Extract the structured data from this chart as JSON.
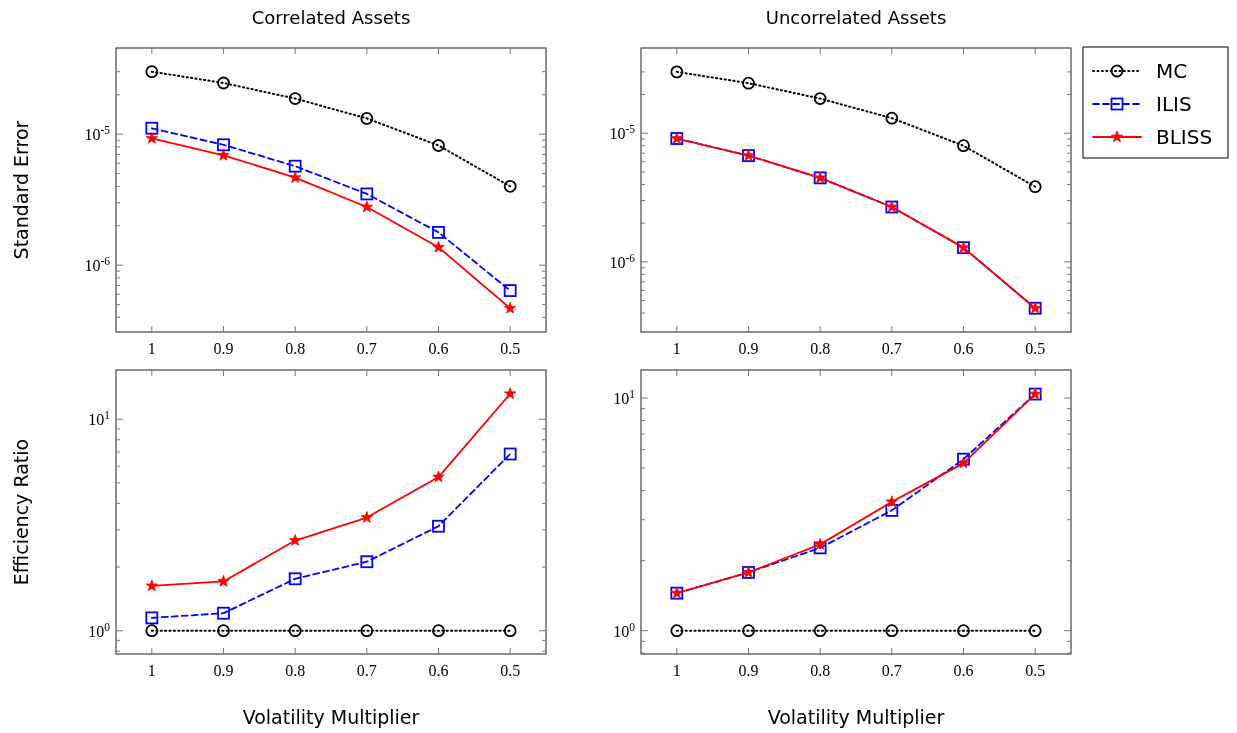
{
  "chart_data": [
    {
      "type": "line",
      "title": "Correlated Assets",
      "ylabel": "Standard Error",
      "x": [
        1,
        0.9,
        0.8,
        0.7,
        0.6,
        0.5
      ],
      "xlim": [
        1.05,
        0.45
      ],
      "xticks": [
        1,
        0.9,
        0.8,
        0.7,
        0.6,
        0.5
      ],
      "log": "y",
      "ylim": [
        3.09e-07,
        4.55e-05
      ],
      "yticks": [
        {
          "value": 4e-07,
          "label": null
        },
        {
          "value": 5e-07,
          "label": null
        },
        {
          "value": 6e-07,
          "label": null
        },
        {
          "value": 7e-07,
          "label": null
        },
        {
          "value": 8e-07,
          "label": null
        },
        {
          "value": 9e-07,
          "label": null
        },
        {
          "value": 1e-06,
          "label": "10$^{-6}$"
        },
        {
          "value": 2e-06,
          "label": null
        },
        {
          "value": 3e-06,
          "label": null
        },
        {
          "value": 4e-06,
          "label": null
        },
        {
          "value": 5e-06,
          "label": null
        },
        {
          "value": 6e-06,
          "label": null
        },
        {
          "value": 7e-06,
          "label": null
        },
        {
          "value": 8e-06,
          "label": null
        },
        {
          "value": 9e-06,
          "label": null
        },
        {
          "value": 1e-05,
          "label": "10$^{-5}$"
        },
        {
          "value": 2e-05,
          "label": null
        },
        {
          "value": 3e-05,
          "label": null
        }
      ],
      "series": [
        {
          "color": "#000000",
          "marker": "circle",
          "line_style": "dotted",
          "values": [
            3e-05,
            2.46e-05,
            1.87e-05,
            1.32e-05,
            8.2e-06,
            4e-06
          ]
        },
        {
          "color": "#0000ff",
          "marker": "square",
          "line_style": "dashed",
          "values": [
            1.11e-05,
            8.3e-06,
            5.7e-06,
            3.5e-06,
            1.78e-06,
            6.4e-07
          ]
        },
        {
          "color": "#ff0000",
          "marker": "star",
          "line_style": "solid",
          "values": [
            9.3e-06,
            6.9e-06,
            4.66e-06,
            2.78e-06,
            1.37e-06,
            4.69e-07
          ]
        }
      ]
    },
    {
      "type": "line",
      "title": "Uncorrelated Assets",
      "x": [
        1,
        0.9,
        0.8,
        0.7,
        0.6,
        0.5
      ],
      "xlim": [
        1.05,
        0.45
      ],
      "xticks": [
        1,
        0.9,
        0.8,
        0.7,
        0.6,
        0.5
      ],
      "log": "y",
      "ylim": [
        2.85e-07,
        4.6e-05
      ],
      "legend": "right",
      "yticks": [
        {
          "value": 4e-07,
          "label": null
        },
        {
          "value": 5e-07,
          "label": null
        },
        {
          "value": 6e-07,
          "label": null
        },
        {
          "value": 7e-07,
          "label": null
        },
        {
          "value": 8e-07,
          "label": null
        },
        {
          "value": 9e-07,
          "label": null
        },
        {
          "value": 1e-06,
          "label": "10$^{-6}$"
        },
        {
          "value": 2e-06,
          "label": null
        },
        {
          "value": 3e-06,
          "label": null
        },
        {
          "value": 4e-06,
          "label": null
        },
        {
          "value": 5e-06,
          "label": null
        },
        {
          "value": 6e-06,
          "label": null
        },
        {
          "value": 7e-06,
          "label": null
        },
        {
          "value": 8e-06,
          "label": null
        },
        {
          "value": 9e-06,
          "label": null
        },
        {
          "value": 1e-05,
          "label": "10$^{-5}$"
        },
        {
          "value": 2e-05,
          "label": null
        },
        {
          "value": 3e-05,
          "label": null
        }
      ],
      "series": [
        {
          "name": "MC",
          "color": "#000000",
          "marker": "circle",
          "line_style": "dotted",
          "values": [
            3e-05,
            2.45e-05,
            1.86e-05,
            1.31e-05,
            8e-06,
            3.84e-06
          ]
        },
        {
          "name": "ILIS",
          "color": "#0000ff",
          "marker": "square",
          "line_style": "dashed",
          "values": [
            9.1e-06,
            6.7e-06,
            4.5e-06,
            2.67e-06,
            1.29e-06,
            4.36e-07
          ]
        },
        {
          "name": "BLISS",
          "color": "#ff0000",
          "marker": "star",
          "line_style": "solid",
          "values": [
            9.1e-06,
            6.7e-06,
            4.5e-06,
            2.67e-06,
            1.29e-06,
            4.36e-07
          ]
        }
      ]
    },
    {
      "type": "line",
      "ylabel": "Efficiency Ratio",
      "xlabel": "Volatility Multiplier",
      "x": [
        1,
        0.9,
        0.8,
        0.7,
        0.6,
        0.5
      ],
      "xlim": [
        1.05,
        0.45
      ],
      "xticks": [
        1,
        0.9,
        0.8,
        0.7,
        0.6,
        0.5
      ],
      "log": "y",
      "ylim": [
        0.776,
        17.1
      ],
      "yticks": [
        {
          "value": 0.8,
          "label": null
        },
        {
          "value": 0.9,
          "label": null
        },
        {
          "value": 1,
          "label": "10$^{0}$"
        },
        {
          "value": 2,
          "label": null
        },
        {
          "value": 3,
          "label": null
        },
        {
          "value": 4,
          "label": null
        },
        {
          "value": 5,
          "label": null
        },
        {
          "value": 6,
          "label": null
        },
        {
          "value": 7,
          "label": null
        },
        {
          "value": 8,
          "label": null
        },
        {
          "value": 9,
          "label": null
        },
        {
          "value": 10,
          "label": "10$^{1}$"
        }
      ],
      "series": [
        {
          "color": "#000000",
          "marker": "circle",
          "line_style": "dotted",
          "values": [
            1,
            1,
            1,
            1,
            1,
            1
          ]
        },
        {
          "color": "#0000ff",
          "marker": "square",
          "line_style": "dashed",
          "values": [
            1.15,
            1.21,
            1.76,
            2.12,
            3.12,
            6.85
          ]
        },
        {
          "color": "#ff0000",
          "marker": "star",
          "line_style": "solid",
          "values": [
            1.63,
            1.71,
            2.67,
            3.43,
            5.33,
            13.2
          ]
        }
      ]
    },
    {
      "type": "line",
      "xlabel": "Volatility Multiplier",
      "x": [
        1,
        0.9,
        0.8,
        0.7,
        0.6,
        0.5
      ],
      "xlim": [
        1.05,
        0.45
      ],
      "xticks": [
        1,
        0.9,
        0.8,
        0.7,
        0.6,
        0.5
      ],
      "log": "y",
      "ylim": [
        0.794,
        13.2
      ],
      "yticks": [
        {
          "value": 0.8,
          "label": null
        },
        {
          "value": 0.9,
          "label": null
        },
        {
          "value": 1,
          "label": "10$^{0}$"
        },
        {
          "value": 2,
          "label": null
        },
        {
          "value": 3,
          "label": null
        },
        {
          "value": 4,
          "label": null
        },
        {
          "value": 5,
          "label": null
        },
        {
          "value": 6,
          "label": null
        },
        {
          "value": 7,
          "label": null
        },
        {
          "value": 8,
          "label": null
        },
        {
          "value": 9,
          "label": null
        },
        {
          "value": 10,
          "label": "10$^{1}$"
        }
      ],
      "series": [
        {
          "color": "#000000",
          "marker": "circle",
          "line_style": "dotted",
          "values": [
            1,
            1,
            1,
            1,
            1,
            1
          ]
        },
        {
          "color": "#0000ff",
          "marker": "square",
          "line_style": "dashed",
          "values": [
            1.45,
            1.78,
            2.27,
            3.29,
            5.46,
            10.4
          ]
        },
        {
          "color": "#ff0000",
          "marker": "star",
          "line_style": "solid",
          "values": [
            1.45,
            1.78,
            2.35,
            3.58,
            5.25,
            10.4
          ]
        }
      ]
    }
  ]
}
